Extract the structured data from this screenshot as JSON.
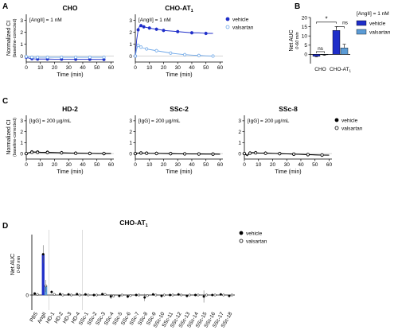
{
  "panels": [
    {
      "id": "A1",
      "letter": "A",
      "title": "CHO",
      "annotation": "[AngII] = 1 nM",
      "type": "line",
      "ylabel": "Normalized CI",
      "ylabel2": "(baseline-corrected)",
      "ylim": [
        -0.5,
        3.5
      ],
      "yticks": [
        0,
        1,
        2,
        3
      ],
      "xlabel": "Time (min)",
      "xlim": [
        0,
        62
      ],
      "xticks": [
        0,
        10,
        20,
        30,
        40,
        50,
        60
      ],
      "series": [
        {
          "name": "vehicle",
          "color": "#1f2ec9",
          "filled": true,
          "x": [
            0,
            2,
            4,
            6,
            8,
            10,
            15,
            20,
            25,
            30,
            35,
            40,
            45,
            50,
            55
          ],
          "y": [
            -0.1,
            -0.18,
            -0.22,
            -0.24,
            -0.25,
            -0.25,
            -0.25,
            -0.26,
            -0.26,
            -0.26,
            -0.27,
            -0.27,
            -0.27,
            -0.28,
            -0.28
          ]
        },
        {
          "name": "valsartan",
          "color": "#6fa8e8",
          "filled": false,
          "x": [
            0,
            2,
            4,
            6,
            8,
            10,
            15,
            20,
            25,
            30,
            35,
            40,
            45,
            50,
            55
          ],
          "y": [
            -0.05,
            -0.08,
            -0.1,
            -0.1,
            -0.1,
            -0.1,
            -0.1,
            -0.1,
            -0.1,
            -0.1,
            -0.1,
            -0.1,
            -0.1,
            -0.1,
            -0.1
          ]
        }
      ]
    },
    {
      "id": "A2",
      "letter": "",
      "title": "CHO-AT1",
      "annotation": "[AngII] = 1 nM",
      "type": "line",
      "ylim": [
        -0.5,
        3.5
      ],
      "yticks": [
        0,
        1,
        2,
        3
      ],
      "xlabel": "Time (min)",
      "xlim": [
        0,
        62
      ],
      "xticks": [
        0,
        10,
        20,
        30,
        40,
        50,
        60
      ],
      "series": [
        {
          "name": "vehicle",
          "color": "#1f2ec9",
          "filled": true,
          "x": [
            0,
            1,
            2,
            3,
            4,
            5,
            6,
            8,
            10,
            12,
            15,
            18,
            20,
            25,
            30,
            35,
            40,
            45,
            50,
            55
          ],
          "y": [
            0,
            1.4,
            2.2,
            2.5,
            2.55,
            2.5,
            2.45,
            2.4,
            2.35,
            2.3,
            2.25,
            2.2,
            2.15,
            2.1,
            2.05,
            2.0,
            1.95,
            1.95,
            1.9,
            1.9
          ]
        },
        {
          "name": "valsartan",
          "color": "#6fa8e8",
          "filled": false,
          "x": [
            0,
            1,
            2,
            3,
            4,
            5,
            8,
            10,
            15,
            20,
            25,
            30,
            35,
            40,
            45,
            50,
            55
          ],
          "y": [
            0,
            0.6,
            0.9,
            0.85,
            0.75,
            0.7,
            0.6,
            0.55,
            0.45,
            0.35,
            0.25,
            0.18,
            0.12,
            0.08,
            0.05,
            0.02,
            0.0
          ]
        }
      ],
      "legend": [
        {
          "name": "vehicle",
          "color": "#1f2ec9",
          "filled": true
        },
        {
          "name": "valsartan",
          "color": "#6fa8e8",
          "filled": false
        }
      ]
    },
    {
      "id": "B",
      "letter": "B",
      "title": "",
      "annotation": "",
      "type": "bar",
      "ylabel": "Net AUC",
      "ylabel2": "0-60 min",
      "ylim": [
        -5,
        20
      ],
      "yticks": [
        0,
        5,
        10,
        15,
        20
      ],
      "categories": [
        "CHO",
        "CHO-AT1"
      ],
      "series": [
        {
          "name": "vehicle",
          "color": "#1f2ec9",
          "values": [
            -1.0,
            13.0
          ],
          "err": [
            0.3,
            2.0
          ]
        },
        {
          "name": "valsartan",
          "color": "#5b9bd5",
          "values": [
            -0.2,
            3.5
          ],
          "err": [
            0.3,
            2.0
          ]
        }
      ],
      "legend_title": "[AngII] = 1 nM",
      "sig": [
        {
          "label": "*",
          "level": 17.5
        },
        {
          "label": "ns",
          "level": 15.0
        },
        {
          "label": "ns",
          "level": 1.5
        }
      ]
    },
    {
      "id": "C1",
      "letter": "C",
      "title": "HD-2",
      "annotation": "[IgG] = 200 µg/mL",
      "type": "line",
      "ylabel": "Normalized CI",
      "ylabel2": "(baseline-corrected)",
      "ylim": [
        -0.5,
        3.5
      ],
      "yticks": [
        0,
        1,
        2,
        3
      ],
      "xlabel": "Time (min)",
      "xlim": [
        0,
        62
      ],
      "xticks": [
        0,
        10,
        20,
        30,
        40,
        50,
        60
      ],
      "series": [
        {
          "name": "vehicle",
          "color": "#000000",
          "filled": true,
          "x": [
            0,
            2,
            4,
            6,
            8,
            10,
            15,
            20,
            25,
            30,
            35,
            40,
            45,
            50,
            55,
            60
          ],
          "y": [
            0,
            0.1,
            0.15,
            0.15,
            0.14,
            0.13,
            0.12,
            0.1,
            0.08,
            0.06,
            0.04,
            0.03,
            0.02,
            0.01,
            0.0,
            0.0
          ]
        },
        {
          "name": "valsartan",
          "color": "#000000",
          "filled": false,
          "x": [
            0,
            2,
            4,
            6,
            8,
            10,
            15,
            20,
            25,
            30,
            35,
            40,
            45,
            50,
            55,
            60
          ],
          "y": [
            0,
            0.08,
            0.12,
            0.12,
            0.11,
            0.1,
            0.09,
            0.08,
            0.06,
            0.05,
            0.03,
            0.02,
            0.01,
            0.0,
            0.0,
            0.0
          ]
        }
      ]
    },
    {
      "id": "C2",
      "letter": "",
      "title": "SSc-2",
      "annotation": "[IgG] = 200 µg/mL",
      "type": "line",
      "ylim": [
        -0.5,
        3.5
      ],
      "yticks": [
        0,
        1,
        2,
        3
      ],
      "xlabel": "Time (min)",
      "xlim": [
        0,
        62
      ],
      "xticks": [
        0,
        10,
        20,
        30,
        40,
        50,
        60
      ],
      "series": [
        {
          "name": "vehicle",
          "color": "#000000",
          "filled": true,
          "x": [
            0,
            2,
            4,
            6,
            8,
            10,
            15,
            20,
            25,
            30,
            35,
            40,
            45,
            50,
            55,
            60
          ],
          "y": [
            0,
            0.05,
            0.06,
            0.05,
            0.04,
            0.03,
            0.02,
            0.01,
            0.0,
            -0.01,
            -0.02,
            -0.03,
            -0.03,
            -0.04,
            -0.04,
            -0.05
          ]
        },
        {
          "name": "valsartan",
          "color": "#000000",
          "filled": false,
          "x": [
            0,
            2,
            4,
            6,
            8,
            10,
            15,
            20,
            25,
            30,
            35,
            40,
            45,
            50,
            55,
            60
          ],
          "y": [
            0,
            0.04,
            0.05,
            0.04,
            0.03,
            0.02,
            0.01,
            0.0,
            -0.01,
            -0.02,
            -0.03,
            -0.04,
            -0.04,
            -0.05,
            -0.05,
            -0.06
          ]
        }
      ]
    },
    {
      "id": "C3",
      "letter": "",
      "title": "SSc-8",
      "annotation": "[IgG] = 200 µg/mL",
      "type": "line",
      "ylim": [
        -0.5,
        3.5
      ],
      "yticks": [
        0,
        1,
        2,
        3
      ],
      "xlabel": "Time (min)",
      "xlim": [
        0,
        62
      ],
      "xticks": [
        0,
        10,
        20,
        30,
        40,
        50,
        60
      ],
      "series": [
        {
          "name": "vehicle",
          "color": "#000000",
          "filled": true,
          "x": [
            0,
            2,
            4,
            6,
            8,
            10,
            15,
            20,
            25,
            30,
            35,
            40,
            45,
            50,
            55,
            60
          ],
          "y": [
            0,
            -0.2,
            0.05,
            0.1,
            0.08,
            0.06,
            0.04,
            0.02,
            0.0,
            -0.02,
            -0.05,
            -0.08,
            -0.1,
            -0.12,
            -0.14,
            -0.15
          ]
        },
        {
          "name": "valsartan",
          "color": "#000000",
          "filled": false,
          "x": [
            0,
            2,
            4,
            6,
            8,
            10,
            15,
            20,
            25,
            30,
            35,
            40,
            45,
            50,
            55,
            60
          ],
          "y": [
            0,
            -0.15,
            0.04,
            0.08,
            0.06,
            0.05,
            0.03,
            0.01,
            -0.01,
            -0.03,
            -0.05,
            -0.07,
            -0.09,
            -0.11,
            -0.13,
            -0.14
          ]
        }
      ],
      "legend": [
        {
          "name": "vehicle",
          "color": "#000000",
          "filled": true
        },
        {
          "name": "valsartan",
          "color": "#000000",
          "filled": false
        }
      ]
    },
    {
      "id": "D",
      "letter": "D",
      "title": "CHO-AT1",
      "annotation": "",
      "type": "bar",
      "ylabel": "Net AUC",
      "ylabel2": "0-60 min",
      "ylim": [
        -5,
        20
      ],
      "categories": [
        "PBS",
        "AngII",
        "HD-1",
        "HD-2",
        "HD-3",
        "HD-4",
        "SSc-1",
        "SSc-2",
        "SSc-3",
        "SSc-4",
        "SSc-5",
        "SSc-6",
        "SSc-7",
        "SSc-8",
        "SSc-9",
        "SSc-10",
        "SSc-11",
        "SSc-12",
        "SSc-13",
        "SSc-14",
        "SSc-15",
        "SSc-16",
        "SSc-17",
        "SSc-18"
      ],
      "series": [
        {
          "name": "vehicle",
          "color": "#1f2ec9",
          "values": [
            0.5,
            13.5,
            1.0,
            0.3,
            0.2,
            0.3,
            0.2,
            0.0,
            0.3,
            -0.5,
            -0.3,
            -0.5,
            0.0,
            -0.8,
            0.2,
            -0.3,
            0.0,
            0.2,
            -0.3,
            0.0,
            -0.5,
            0.0,
            0.2,
            -0.3
          ],
          "err": [
            0.3,
            3.0,
            0.5,
            0.5,
            0.3,
            0.3,
            0.3,
            0.3,
            0.3,
            0.8,
            0.3,
            0.5,
            0.3,
            1.2,
            0.3,
            0.5,
            0.3,
            0.3,
            0.3,
            0.3,
            2.0,
            0.3,
            0.3,
            0.3
          ]
        },
        {
          "name": "valsartan",
          "color": "#5b9bd5",
          "values": [
            0.2,
            3.0,
            0.2,
            0.0,
            0.0,
            0.0,
            0.0,
            0.0,
            0.2,
            -0.3,
            0.0,
            -0.2,
            0.0,
            -0.2,
            0.0,
            0.0,
            0.0,
            0.0,
            0.0,
            0.0,
            0.0,
            0.0,
            0.0,
            0.0
          ],
          "err": [
            0.3,
            2.0,
            0.3,
            0.3,
            0.3,
            0.3,
            0.3,
            0.3,
            0.3,
            0.3,
            0.3,
            0.3,
            0.3,
            0.3,
            0.3,
            0.3,
            0.3,
            0.3,
            0.3,
            0.3,
            0.3,
            0.3,
            0.3,
            0.3
          ]
        }
      ],
      "legend": [
        {
          "name": "vehicle",
          "color": "#000000",
          "filled": true
        },
        {
          "name": "valsartan",
          "color": "#000000",
          "filled": false
        }
      ]
    }
  ]
}
